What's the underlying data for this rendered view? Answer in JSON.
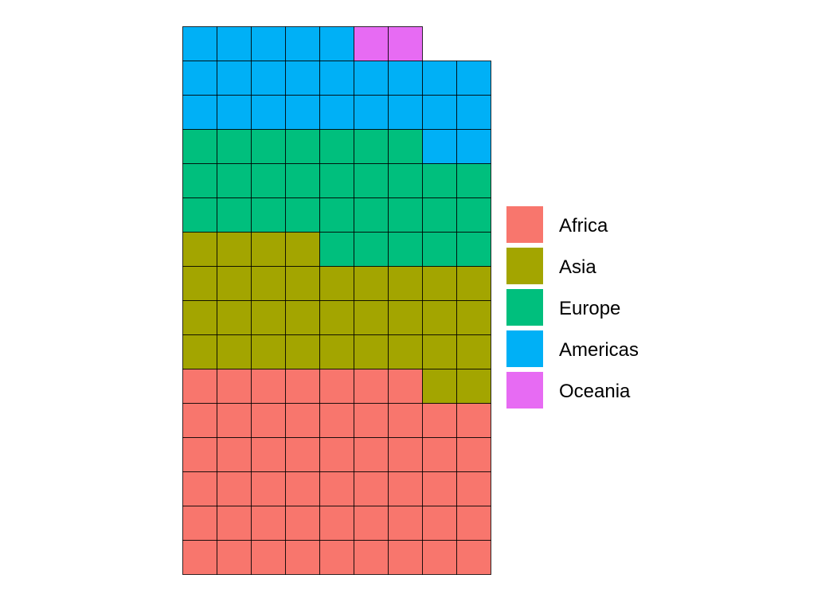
{
  "chart_data": {
    "type": "waffle",
    "grid": {
      "columns": 9,
      "rows": 16,
      "fill_order": "row-wise from bottom-left"
    },
    "series": [
      {
        "name": "Africa",
        "value": 52,
        "color": "#F8766D"
      },
      {
        "name": "Asia",
        "value": 33,
        "color": "#A3A500"
      },
      {
        "name": "Europe",
        "value": 30,
        "color": "#00BF7D"
      },
      {
        "name": "Americas",
        "value": 25,
        "color": "#00B0F6"
      },
      {
        "name": "Oceania",
        "value": 2,
        "color": "#E76BF3"
      }
    ],
    "cell_border_color": "#000000",
    "legend": {
      "position": "right",
      "entries": [
        "Africa",
        "Asia",
        "Europe",
        "Americas",
        "Oceania"
      ]
    }
  }
}
